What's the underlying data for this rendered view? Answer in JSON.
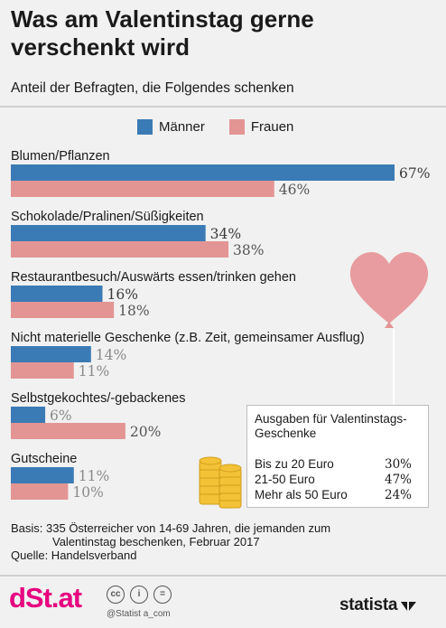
{
  "title": "Was am Valentinstag gerne verschenkt wird",
  "subtitle": "Anteil der Befragten, die Folgendes schenken",
  "colors": {
    "men": "#3b7bb5",
    "women": "#e39594",
    "men_label": "#3a3a3a",
    "women_label": "#555555",
    "muted_label": "#8a8a8a",
    "brand": "#e6007e"
  },
  "chart_data": {
    "type": "bar",
    "orientation": "horizontal",
    "categories": [
      "Blumen/Pflanzen",
      "Schokolade/Pralinen/Süßigkeiten",
      "Restaurantbesuch/Auswärts essen/trinken gehen",
      "Nicht materielle Geschenke (z.B. Zeit, gemeinsamer Ausflug)",
      "Selbstgekochtes/-gebackenes",
      "Gutscheine"
    ],
    "series": [
      {
        "name": "Männer",
        "values": [
          67,
          34,
          16,
          14,
          6,
          11
        ]
      },
      {
        "name": "Frauen",
        "values": [
          46,
          38,
          18,
          11,
          20,
          10
        ]
      }
    ],
    "value_labels": {
      "Männer": [
        "67%",
        "34%",
        "16%",
        "14%",
        "6%",
        "11%"
      ],
      "Frauen": [
        "46%",
        "38%",
        "18%",
        "11%",
        "20%",
        "10%"
      ]
    },
    "xlim": [
      0,
      67
    ],
    "grid": false,
    "legend": "top"
  },
  "legend": {
    "men": "Männer",
    "women": "Frauen"
  },
  "inset": {
    "title": "Ausgaben für Valentinstags-Geschenke",
    "rows": [
      {
        "label": "Bis zu 20 Euro",
        "value": "30%"
      },
      {
        "label": "21-50 Euro",
        "value": "47%"
      },
      {
        "label": "Mehr als 50 Euro",
        "value": "24%"
      }
    ]
  },
  "footer": {
    "basis_line1": "Basis: 335 Österreicher von 14-69 Jahren, die jemanden zum",
    "basis_line2": "Valentinstag beschenken, Februar 2017",
    "source": "Quelle: Handelsverband"
  },
  "branding": {
    "logo": "dSt.at",
    "credit": "@Statist a_com",
    "statista": "statista",
    "license_icons": [
      "cc-icon",
      "by-icon",
      "nd-icon"
    ]
  }
}
